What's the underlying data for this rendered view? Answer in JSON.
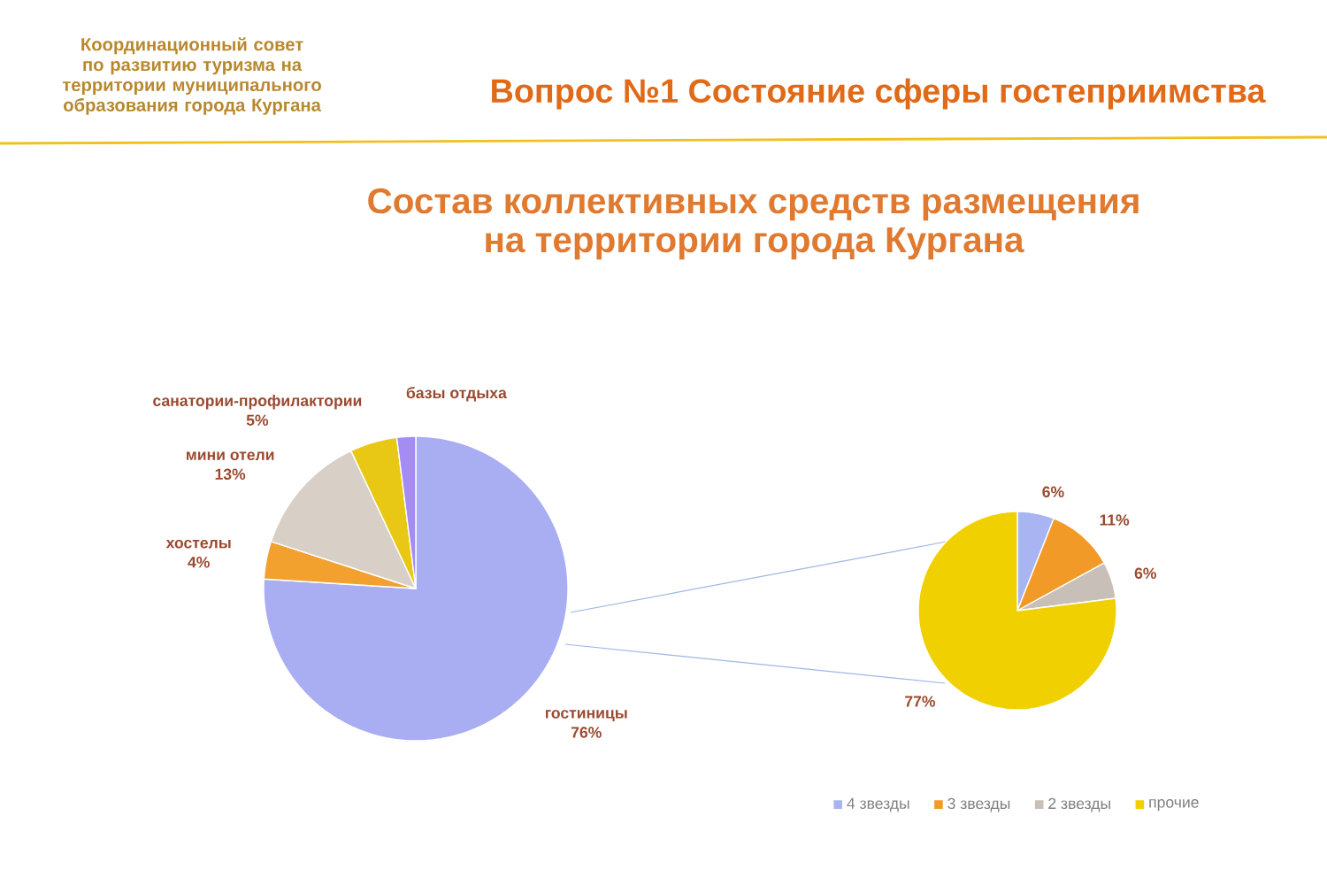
{
  "chart_data": [
    {
      "type": "pie",
      "title": "Состав коллективных средств размещения на территории города Кургана",
      "annotations": [
        "Координационный совет по развитию туризма на территории муниципального образования города Кургана",
        "Вопрос №1 Состояние сферы гостеприимства"
      ],
      "categories": [
        "гостиницы",
        "хостелы",
        "мини отели",
        "санатории-профилактории",
        "базы отдыха"
      ],
      "values": [
        76,
        4,
        13,
        5,
        2
      ],
      "colors": [
        "#a9adf2",
        "#f2a02e",
        "#d8d0c6",
        "#e8c814",
        "#a48cf2"
      ],
      "value_labels": [
        "76%",
        "4%",
        "13%",
        "5%",
        null
      ]
    },
    {
      "type": "pie",
      "categories": [
        "4 звезды",
        "3 звезды",
        "2 звезды",
        "прочие"
      ],
      "values": [
        6,
        11,
        6,
        77
      ],
      "colors": [
        "#a9b4f2",
        "#f29a28",
        "#c8c0b8",
        "#f0d000"
      ],
      "value_labels": [
        "6%",
        "11%",
        "6%",
        "77%"
      ],
      "legend": "bottom"
    }
  ]
}
